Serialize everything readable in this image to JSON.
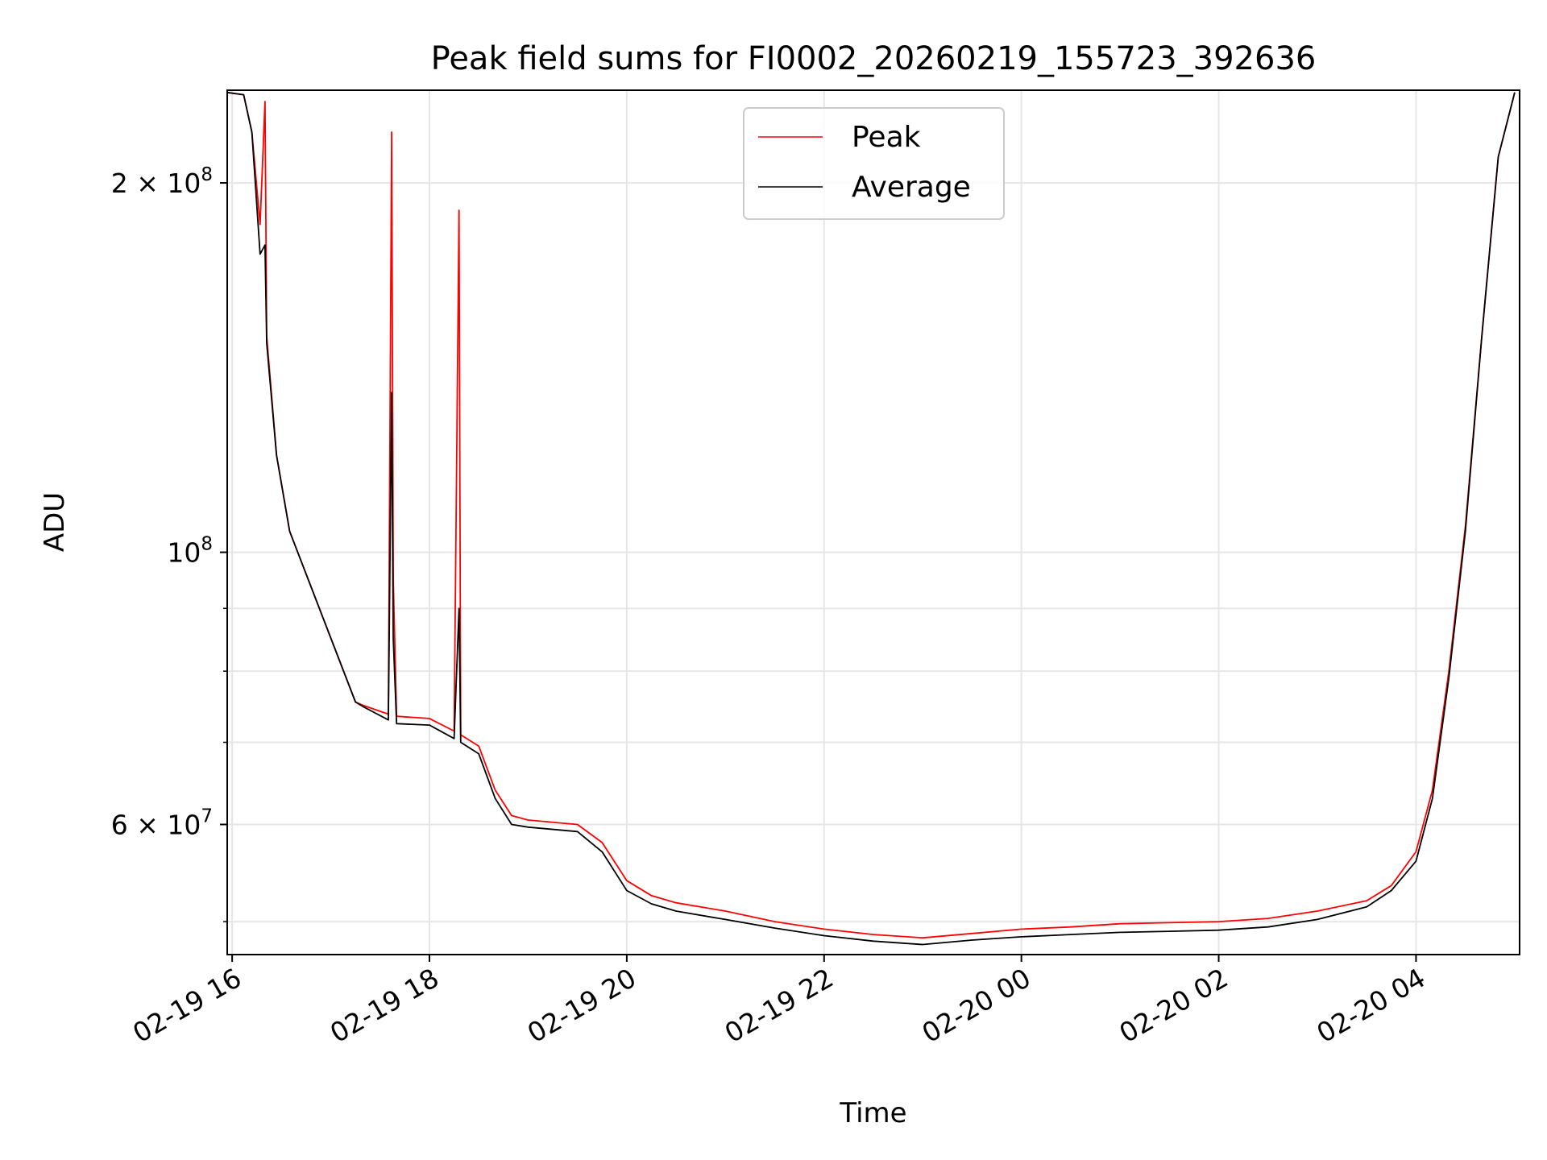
{
  "chart_data": {
    "type": "line",
    "title": "Peak field sums for FI0002_20260219_155723_392636",
    "xlabel": "Time",
    "ylabel": "ADU",
    "x_scale": "time",
    "y_scale": "log",
    "xlim": [
      "2026-02-19T15:57",
      "2026-02-20T05:03"
    ],
    "ylim": [
      47000000,
      238000000
    ],
    "xticks": [
      {
        "value": "2026-02-19T16:00",
        "label": "02-19 16"
      },
      {
        "value": "2026-02-19T18:00",
        "label": "02-19 18"
      },
      {
        "value": "2026-02-19T20:00",
        "label": "02-19 20"
      },
      {
        "value": "2026-02-19T22:00",
        "label": "02-19 22"
      },
      {
        "value": "2026-02-20T00:00",
        "label": "02-20 00"
      },
      {
        "value": "2026-02-20T02:00",
        "label": "02-20 02"
      },
      {
        "value": "2026-02-20T04:00",
        "label": "02-20 04"
      }
    ],
    "yticks_major": [
      {
        "value": 60000000,
        "base": "6",
        "exp": "7"
      },
      {
        "value": 100000000,
        "base": "",
        "exp": "8"
      },
      {
        "value": 200000000,
        "base": "2",
        "exp": "8"
      }
    ],
    "yticks_minor": [
      50000000,
      70000000,
      80000000,
      90000000
    ],
    "grid": true,
    "legend": {
      "position": "top-center"
    },
    "series": [
      {
        "name": "Peak",
        "color": "#ff0000",
        "points": [
          [
            "2026-02-19T15:57",
            237000000
          ],
          [
            "2026-02-19T16:07",
            236000000
          ],
          [
            "2026-02-19T16:12",
            220000000
          ],
          [
            "2026-02-19T16:17",
            185000000
          ],
          [
            "2026-02-19T16:20",
            233000000
          ],
          [
            "2026-02-19T16:21",
            150000000
          ],
          [
            "2026-02-19T16:27",
            120000000
          ],
          [
            "2026-02-19T16:35",
            104000000
          ],
          [
            "2026-02-19T17:15",
            75500000
          ],
          [
            "2026-02-19T17:20",
            75000000
          ],
          [
            "2026-02-19T17:35",
            73800000
          ],
          [
            "2026-02-19T17:37",
            220000000
          ],
          [
            "2026-02-19T17:38",
            95000000
          ],
          [
            "2026-02-19T17:40",
            73500000
          ],
          [
            "2026-02-19T18:00",
            73200000
          ],
          [
            "2026-02-19T18:15",
            71500000
          ],
          [
            "2026-02-19T18:18",
            190000000
          ],
          [
            "2026-02-19T18:19",
            71000000
          ],
          [
            "2026-02-19T18:30",
            69500000
          ],
          [
            "2026-02-19T18:40",
            64000000
          ],
          [
            "2026-02-19T18:50",
            61000000
          ],
          [
            "2026-02-19T19:00",
            60500000
          ],
          [
            "2026-02-19T19:30",
            60000000
          ],
          [
            "2026-02-19T19:45",
            58000000
          ],
          [
            "2026-02-19T20:00",
            54000000
          ],
          [
            "2026-02-19T20:15",
            52500000
          ],
          [
            "2026-02-19T20:30",
            51800000
          ],
          [
            "2026-02-19T21:00",
            51000000
          ],
          [
            "2026-02-19T21:30",
            50000000
          ],
          [
            "2026-02-19T22:00",
            49300000
          ],
          [
            "2026-02-19T22:30",
            48800000
          ],
          [
            "2026-02-19T23:00",
            48500000
          ],
          [
            "2026-02-19T23:30",
            48900000
          ],
          [
            "2026-02-20T00:00",
            49300000
          ],
          [
            "2026-02-20T00:30",
            49500000
          ],
          [
            "2026-02-20T01:00",
            49800000
          ],
          [
            "2026-02-20T01:30",
            49900000
          ],
          [
            "2026-02-20T02:00",
            50000000
          ],
          [
            "2026-02-20T02:30",
            50300000
          ],
          [
            "2026-02-20T03:00",
            51000000
          ],
          [
            "2026-02-20T03:30",
            52000000
          ],
          [
            "2026-02-20T03:45",
            53500000
          ],
          [
            "2026-02-20T04:00",
            57000000
          ],
          [
            "2026-02-20T04:10",
            64000000
          ],
          [
            "2026-02-20T04:20",
            80000000
          ],
          [
            "2026-02-20T04:30",
            105000000
          ],
          [
            "2026-02-20T04:40",
            150000000
          ],
          [
            "2026-02-20T04:50",
            210000000
          ],
          [
            "2026-02-20T05:00",
            237000000
          ]
        ]
      },
      {
        "name": "Average",
        "color": "#000000",
        "points": [
          [
            "2026-02-19T15:57",
            237000000
          ],
          [
            "2026-02-19T16:07",
            236000000
          ],
          [
            "2026-02-19T16:12",
            220000000
          ],
          [
            "2026-02-19T16:17",
            175000000
          ],
          [
            "2026-02-19T16:20",
            178000000
          ],
          [
            "2026-02-19T16:21",
            148000000
          ],
          [
            "2026-02-19T16:27",
            120000000
          ],
          [
            "2026-02-19T16:35",
            104000000
          ],
          [
            "2026-02-19T17:15",
            75500000
          ],
          [
            "2026-02-19T17:20",
            74800000
          ],
          [
            "2026-02-19T17:35",
            73000000
          ],
          [
            "2026-02-19T17:37",
            135000000
          ],
          [
            "2026-02-19T17:38",
            85000000
          ],
          [
            "2026-02-19T17:40",
            72500000
          ],
          [
            "2026-02-19T18:00",
            72300000
          ],
          [
            "2026-02-19T18:15",
            70500000
          ],
          [
            "2026-02-19T18:18",
            90000000
          ],
          [
            "2026-02-19T18:19",
            70000000
          ],
          [
            "2026-02-19T18:30",
            68500000
          ],
          [
            "2026-02-19T18:40",
            63000000
          ],
          [
            "2026-02-19T18:50",
            60000000
          ],
          [
            "2026-02-19T19:00",
            59700000
          ],
          [
            "2026-02-19T19:30",
            59200000
          ],
          [
            "2026-02-19T19:45",
            57000000
          ],
          [
            "2026-02-19T20:00",
            53000000
          ],
          [
            "2026-02-19T20:15",
            51700000
          ],
          [
            "2026-02-19T20:30",
            51000000
          ],
          [
            "2026-02-19T21:00",
            50200000
          ],
          [
            "2026-02-19T21:30",
            49400000
          ],
          [
            "2026-02-19T22:00",
            48700000
          ],
          [
            "2026-02-19T22:30",
            48200000
          ],
          [
            "2026-02-19T23:00",
            47900000
          ],
          [
            "2026-02-19T23:30",
            48300000
          ],
          [
            "2026-02-20T00:00",
            48600000
          ],
          [
            "2026-02-20T00:30",
            48800000
          ],
          [
            "2026-02-20T01:00",
            49000000
          ],
          [
            "2026-02-20T01:30",
            49100000
          ],
          [
            "2026-02-20T02:00",
            49200000
          ],
          [
            "2026-02-20T02:30",
            49500000
          ],
          [
            "2026-02-20T03:00",
            50200000
          ],
          [
            "2026-02-20T03:30",
            51400000
          ],
          [
            "2026-02-20T03:45",
            53000000
          ],
          [
            "2026-02-20T04:00",
            56000000
          ],
          [
            "2026-02-20T04:10",
            63000000
          ],
          [
            "2026-02-20T04:20",
            79000000
          ],
          [
            "2026-02-20T04:30",
            104000000
          ],
          [
            "2026-02-20T04:40",
            150000000
          ],
          [
            "2026-02-20T04:50",
            210000000
          ],
          [
            "2026-02-20T05:00",
            237000000
          ]
        ]
      }
    ]
  }
}
